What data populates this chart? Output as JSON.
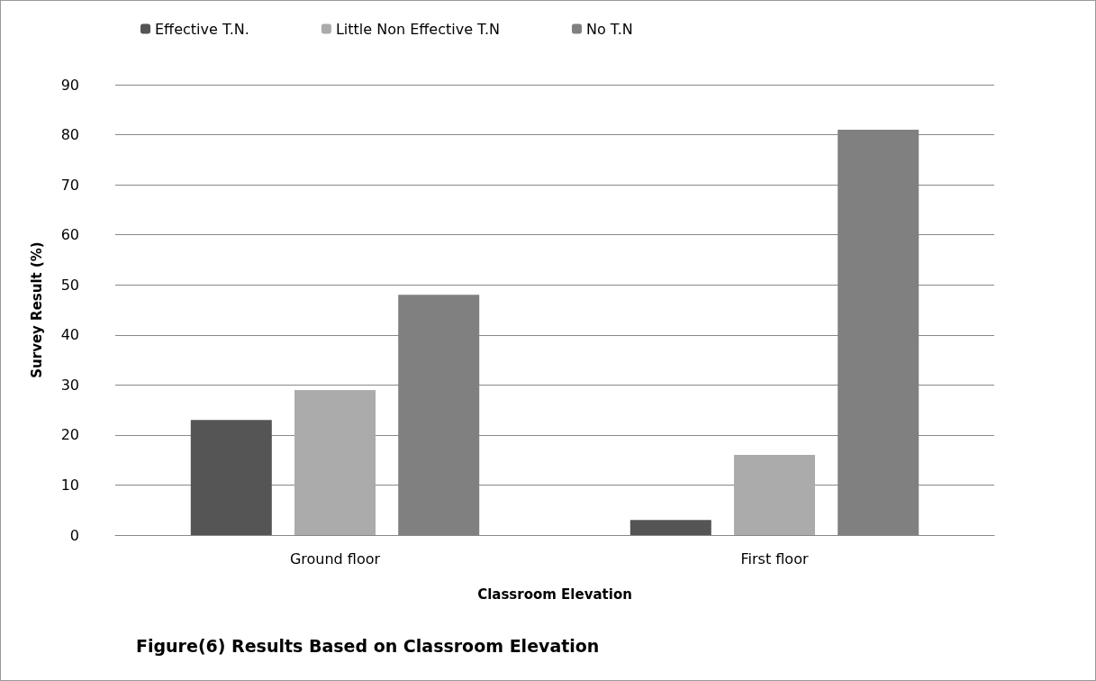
{
  "chart_data": {
    "type": "bar",
    "xlabel": "Classroom Elevation",
    "ylabel": "Survey Result (%)",
    "categories": [
      "Ground floor",
      "First floor"
    ],
    "series": [
      {
        "name": "Effective T.N.",
        "color": "#555555",
        "values": [
          23,
          3
        ]
      },
      {
        "name": "Little Non Effective T.N",
        "color": "#ababab",
        "values": [
          29,
          16
        ]
      },
      {
        "name": "No T.N",
        "color": "#808080",
        "values": [
          48,
          81
        ]
      }
    ],
    "ylim": [
      0,
      90
    ],
    "yticks": [
      0,
      10,
      20,
      30,
      40,
      50,
      60,
      70,
      80,
      90
    ],
    "grid": "y",
    "legend": "top",
    "annotations": [
      "Figure(6) Results Based on Classroom Elevation"
    ]
  }
}
